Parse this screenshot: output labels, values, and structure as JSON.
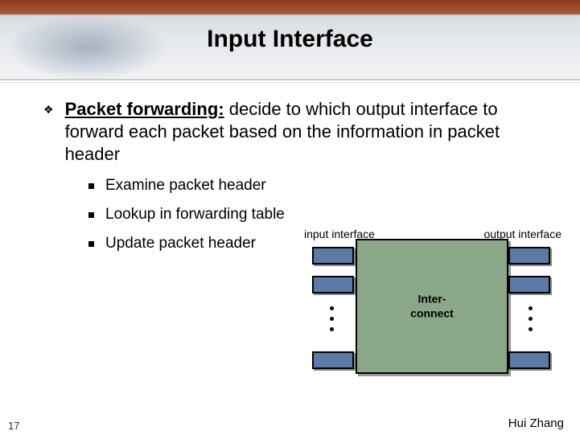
{
  "title": "Input Interface",
  "main_bullet": {
    "lead": "Packet forwarding:",
    "rest": " decide to which output interface to forward each packet based on the information in packet header"
  },
  "sub_bullets": [
    "Examine packet header",
    "Lookup in forwarding table",
    "Update packet header"
  ],
  "diagram": {
    "input_label": "input interface",
    "output_label": "output interface",
    "switch_label": "Inter-connect",
    "colors": {
      "switch_fill": "#8aa887",
      "port_fill": "#5b7aa8",
      "border": "#000000"
    }
  },
  "footer": {
    "slide_number": "17",
    "author": "Hui Zhang"
  }
}
